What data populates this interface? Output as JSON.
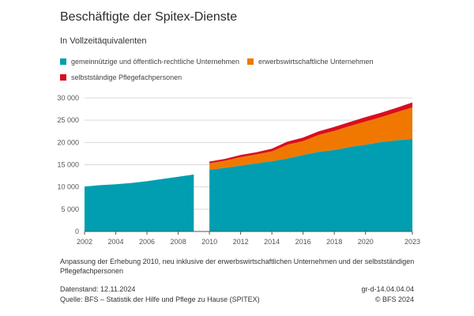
{
  "title": "Beschäftigte der Spitex-Dienste",
  "subtitle": "In Vollzeitäquivalenten",
  "legend": {
    "gemeinnuetzig": "gemeinnützige und öffentlich-rechtliche Unternehmen",
    "erwerb": "erwerbswirtschaftliche Unternehmen",
    "selbst": "selbstständige Pflegefachpersonen"
  },
  "colors": {
    "gemeinnuetzig": "#009eb0",
    "erwerb": "#f07800",
    "selbst": "#d80f1e",
    "grid": "#d9d9d9",
    "axis": "#555555"
  },
  "note": "Anpassung der Erhebung 2010, neu inklusive der erwerbswirtschaftlichen Unternehmen und der selbstständigen Pflegefachpersonen",
  "footer": {
    "datenstand": "Datenstand: 12.11.2024",
    "quelle": "Quelle: BFS – Statistik der Hilfe und Pflege zu Hause (SPITEX)",
    "code": "gr-d-14.04.04.04",
    "copyright": "© BFS 2024"
  },
  "chart_data": {
    "type": "area",
    "stacked": true,
    "xlim": [
      2002,
      2023
    ],
    "ylim": [
      0,
      30000
    ],
    "x_ticks": [
      {
        "value": 2002,
        "label": "2002"
      },
      {
        "value": 2004,
        "label": "2004"
      },
      {
        "value": 2006,
        "label": "2006"
      },
      {
        "value": 2008,
        "label": "2008"
      },
      {
        "value": 2010,
        "label": "2010"
      },
      {
        "value": 2012,
        "label": "2012"
      },
      {
        "value": 2014,
        "label": "2014"
      },
      {
        "value": 2016,
        "label": "2016"
      },
      {
        "value": 2018,
        "label": "2018"
      },
      {
        "value": 2020,
        "label": "2020"
      },
      {
        "value": 2023,
        "label": "2023"
      }
    ],
    "y_ticks": [
      {
        "value": 0,
        "label": "0"
      },
      {
        "value": 5000,
        "label": "5 000"
      },
      {
        "value": 10000,
        "label": "10 000"
      },
      {
        "value": 15000,
        "label": "15 000"
      },
      {
        "value": 20000,
        "label": "20 000"
      },
      {
        "value": 25000,
        "label": "25 000"
      },
      {
        "value": 30000,
        "label": "30 000"
      }
    ],
    "segments": [
      {
        "x": [
          2002,
          2003,
          2004,
          2005,
          2006,
          2007,
          2008,
          2009
        ],
        "series": [
          {
            "key": "gemeinnuetzig",
            "values": [
              10100,
              10400,
              10600,
              10900,
              11300,
              11800,
              12300,
              12800
            ]
          }
        ]
      },
      {
        "x": [
          2010,
          2011,
          2012,
          2013,
          2014,
          2015,
          2016,
          2017,
          2018,
          2019,
          2020,
          2021,
          2022,
          2023
        ],
        "series": [
          {
            "key": "gemeinnuetzig",
            "values": [
              13900,
              14300,
              14800,
              15300,
              15800,
              16400,
              17200,
              17900,
              18300,
              19000,
              19500,
              20100,
              20500,
              20800
            ]
          },
          {
            "key": "erwerb",
            "values": [
              1400,
              1600,
              1900,
              2000,
              2200,
              3100,
              3100,
              3800,
              4300,
              4700,
              5200,
              5600,
              6300,
              7100
            ]
          },
          {
            "key": "selbst",
            "values": [
              400,
              400,
              500,
              500,
              600,
              700,
              800,
              800,
              900,
              900,
              1000,
              1000,
              1000,
              1100
            ]
          }
        ]
      }
    ]
  }
}
